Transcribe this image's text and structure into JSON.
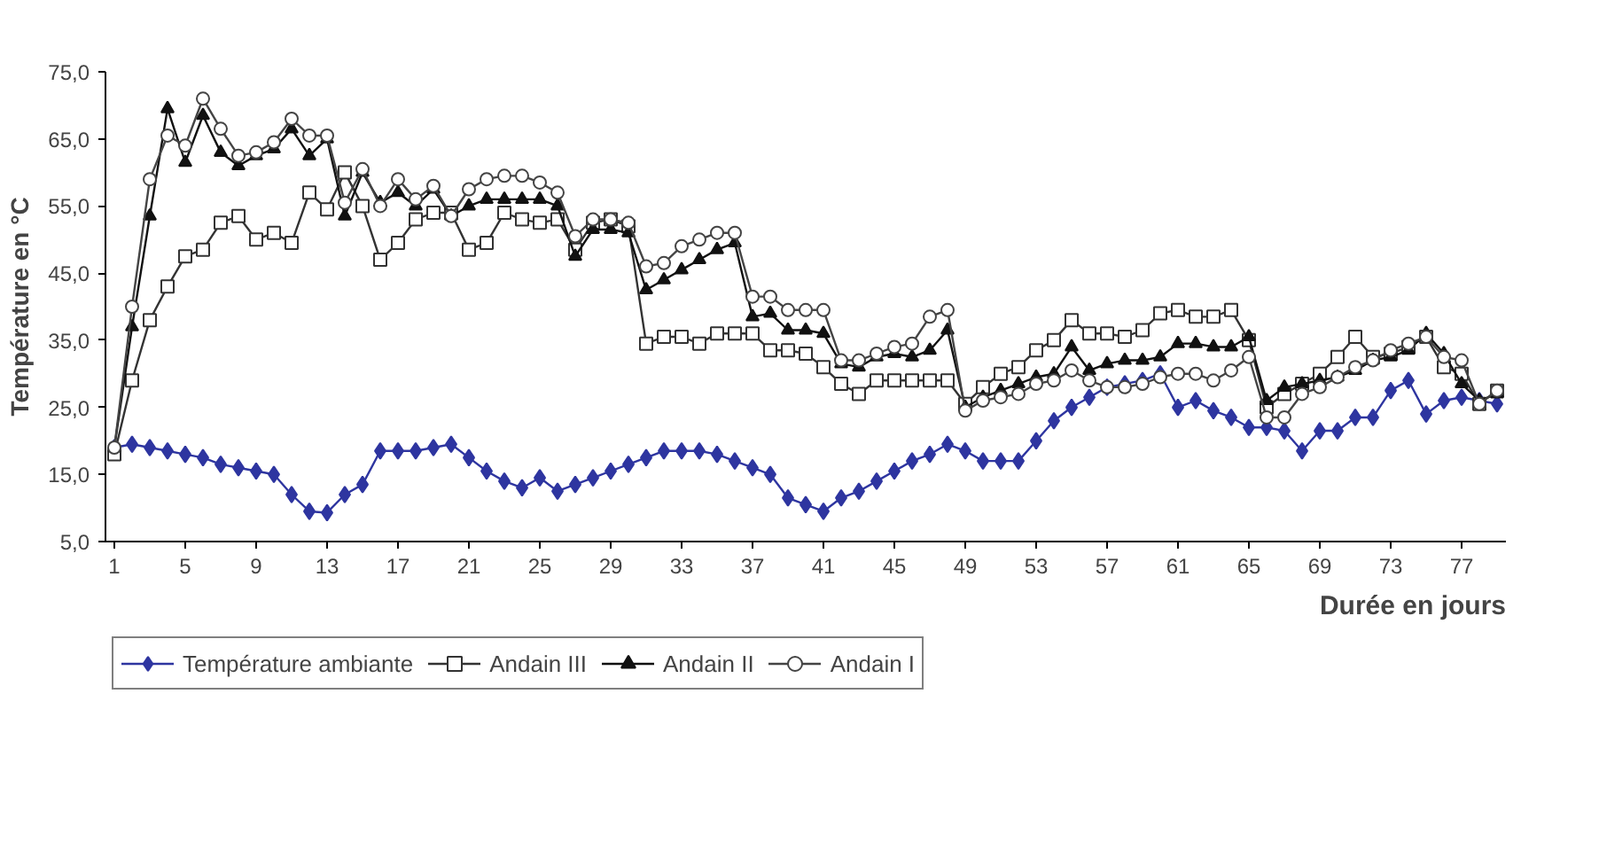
{
  "chart_data": {
    "type": "line",
    "xlabel": "Durée en jours",
    "ylabel": "Température en °C",
    "x": [
      1,
      2,
      3,
      4,
      5,
      6,
      7,
      8,
      9,
      10,
      11,
      12,
      13,
      14,
      15,
      16,
      17,
      18,
      19,
      20,
      21,
      22,
      23,
      24,
      25,
      26,
      27,
      28,
      29,
      30,
      31,
      32,
      33,
      34,
      35,
      36,
      37,
      38,
      39,
      40,
      41,
      42,
      43,
      44,
      45,
      46,
      47,
      48,
      49,
      50,
      51,
      52,
      53,
      54,
      55,
      56,
      57,
      58,
      59,
      60,
      61,
      62,
      63,
      64,
      65,
      66,
      67,
      68,
      69,
      70,
      71,
      72,
      73,
      74,
      75,
      76,
      77,
      78,
      79
    ],
    "xlim": [
      0.5,
      79.5
    ],
    "xticks": [
      1,
      5,
      9,
      13,
      17,
      21,
      25,
      29,
      33,
      37,
      41,
      45,
      49,
      53,
      57,
      61,
      65,
      69,
      73,
      77
    ],
    "ylim": [
      5,
      75
    ],
    "yticks": [
      {
        "value": 5,
        "label": "5,0"
      },
      {
        "value": 15,
        "label": "15,0"
      },
      {
        "value": 25,
        "label": "25,0"
      },
      {
        "value": 35,
        "label": "35,0"
      },
      {
        "value": 45,
        "label": "45,0"
      },
      {
        "value": 55,
        "label": "55,0"
      },
      {
        "value": 65,
        "label": "65,0"
      },
      {
        "value": 75,
        "label": "75,0"
      }
    ],
    "grid": false,
    "legend": "bottom",
    "line_style": "solid",
    "series": [
      {
        "name": "Température ambiante",
        "color": "#2e35a0",
        "marker": "diamond",
        "values": [
          19,
          19.5,
          19,
          18.5,
          18,
          17.5,
          16.5,
          16,
          15.5,
          15,
          12,
          9.5,
          9.3,
          12,
          13.5,
          18.5,
          18.5,
          18.5,
          19,
          19.5,
          17.5,
          15.5,
          14,
          13,
          14.5,
          12.5,
          13.5,
          14.5,
          15.5,
          16.5,
          17.5,
          18.5,
          18.5,
          18.5,
          18,
          17,
          16,
          15,
          11.5,
          10.5,
          9.5,
          11.5,
          12.5,
          14,
          15.5,
          17,
          18,
          19.5,
          18.5,
          17,
          17,
          17,
          20,
          23,
          25,
          26.5,
          28,
          28.5,
          29,
          30,
          25,
          26,
          24.5,
          23.5,
          22,
          22,
          21.5,
          18.5,
          21.5,
          21.5,
          23.5,
          23.5,
          27.5,
          29,
          24,
          26,
          26.5,
          26,
          25.5
        ]
      },
      {
        "name": "Andain III",
        "color": "#333333",
        "marker": "square",
        "values": [
          18,
          29,
          38,
          43,
          47.5,
          48.5,
          52.5,
          53.5,
          50,
          51,
          49.5,
          57,
          54.5,
          60,
          55,
          47,
          49.5,
          53,
          54,
          54,
          48.5,
          49.5,
          54,
          53,
          52.5,
          53,
          48.5,
          52.5,
          53,
          52,
          34.5,
          35.5,
          35.5,
          34.5,
          36,
          36,
          36,
          33.5,
          33.5,
          33,
          31,
          28.5,
          27,
          29,
          29,
          29,
          29,
          29,
          25.5,
          28,
          30,
          31,
          33.5,
          35,
          38,
          36,
          36,
          35.5,
          36.5,
          39,
          39.5,
          38.5,
          38.5,
          39.5,
          35,
          25,
          27,
          28.5,
          30,
          32.5,
          35.5,
          32.5,
          33,
          34,
          35.5,
          31,
          30,
          25.5,
          27.5
        ]
      },
      {
        "name": "Andain II",
        "color": "#111111",
        "marker": "triangle",
        "values": [
          19,
          37,
          53.5,
          69.5,
          61.5,
          68.5,
          63,
          61,
          62.5,
          63.5,
          66.5,
          62.5,
          65,
          53.5,
          60,
          55.5,
          57,
          55,
          57.5,
          53.5,
          55,
          56,
          56,
          56,
          56,
          55,
          47.5,
          51.5,
          51.5,
          51,
          42.5,
          44,
          45.5,
          47,
          48.5,
          49.5,
          38.5,
          39,
          36.5,
          36.5,
          36,
          31.5,
          31,
          32.5,
          33,
          32.5,
          33.5,
          36.5,
          25,
          26.5,
          27.5,
          28.5,
          29.5,
          30,
          34,
          30.5,
          31.5,
          32,
          32,
          32.5,
          34.5,
          34.5,
          34,
          34,
          35.5,
          26,
          28,
          28.5,
          29,
          29.5,
          30.5,
          32,
          32.5,
          33.5,
          36,
          33,
          28.5,
          26,
          27
        ]
      },
      {
        "name": "Andain I",
        "color": "#444444",
        "marker": "circle",
        "values": [
          19,
          40,
          59,
          65.5,
          64,
          71,
          66.5,
          62.5,
          63,
          64.5,
          68,
          65.5,
          65.5,
          55.5,
          60.5,
          55,
          59,
          56,
          58,
          53.5,
          57.5,
          59,
          59.5,
          59.5,
          58.5,
          57,
          50.5,
          53,
          53,
          52.5,
          46,
          46.5,
          49,
          50,
          51,
          51,
          41.5,
          41.5,
          39.5,
          39.5,
          39.5,
          32,
          32,
          33,
          34,
          34.5,
          38.5,
          39.5,
          24.5,
          26,
          26.5,
          27,
          28.5,
          29,
          30.5,
          29,
          28,
          28,
          28.5,
          29.5,
          30,
          30,
          29,
          30.5,
          32.5,
          23.5,
          23.5,
          27,
          28,
          29.5,
          31,
          32,
          33.5,
          34.5,
          35.5,
          32.5,
          32,
          25.5,
          27.5
        ]
      }
    ]
  }
}
